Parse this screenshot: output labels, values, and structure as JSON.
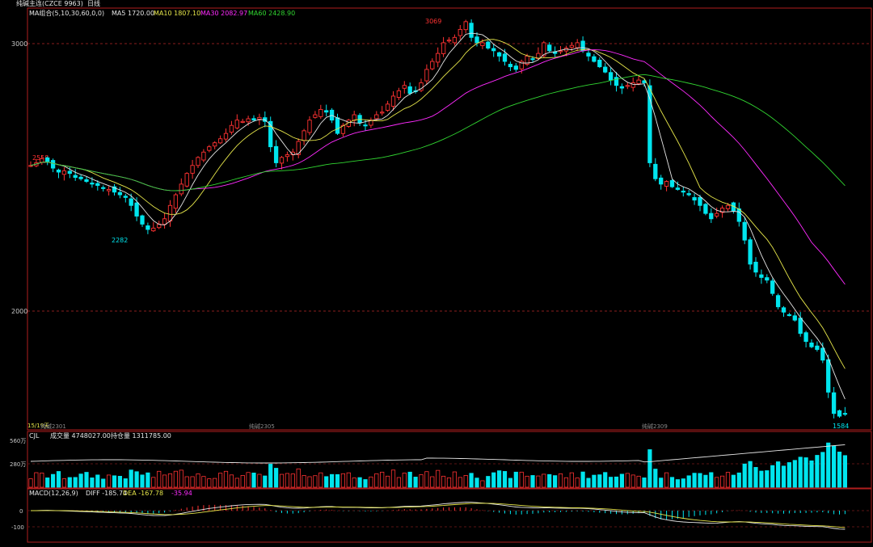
{
  "header": {
    "symbol": "纯碱主连(CZCE 9963)",
    "period": "日线",
    "ma_group": "MA组合(5,10,30,60,0,0)",
    "ma5": "MA5 1720.00",
    "ma10": "MA10 1807.10",
    "ma30": "MA30 2082.97",
    "ma60": "MA60 2428.90"
  },
  "axis": {
    "price_3000": "3000",
    "price_2000": "2000",
    "date_left": "纯碱2301",
    "date_mid": "纯碱2305",
    "date_right": "纯碱2309",
    "left_tag": "15/19天"
  },
  "annotations": {
    "high": "3069",
    "low1": "2282",
    "left_high": "2558",
    "last_low": "1584"
  },
  "volume": {
    "label": "CJL",
    "volume_text": "成交量 4748027.00",
    "oi_text": "持仓量 1311785.00",
    "tick_560": "560万",
    "tick_280": "280万"
  },
  "macd": {
    "label": "MACD(12,26,9)",
    "diff_text": "DIFF -185.74",
    "dea_text": "DEA -167.78",
    "macd_text": "-35.94",
    "tick_0": "0",
    "tick_m100": "-100"
  },
  "colors": {
    "up": "#ff3232",
    "down": "#00e5ee",
    "ma5": "#e6e6e6",
    "ma10": "#e6e64a",
    "ma30": "#ff2bff",
    "ma60": "#31d631",
    "grid": "#8a1e1e",
    "frame": "#b01e1e"
  },
  "chart_data": {
    "type": "candlestick",
    "price_range": [
      1575,
      3120
    ],
    "closes": [
      2530,
      2540,
      2555,
      2545,
      2520,
      2505,
      2510,
      2500,
      2485,
      2480,
      2470,
      2460,
      2455,
      2445,
      2440,
      2430,
      2420,
      2410,
      2380,
      2340,
      2310,
      2290,
      2295,
      2310,
      2330,
      2380,
      2420,
      2460,
      2500,
      2530,
      2560,
      2580,
      2600,
      2615,
      2630,
      2650,
      2680,
      2700,
      2695,
      2705,
      2700,
      2710,
      2695,
      2600,
      2540,
      2560,
      2570,
      2580,
      2620,
      2660,
      2700,
      2720,
      2740,
      2730,
      2700,
      2650,
      2680,
      2700,
      2720,
      2690,
      2680,
      2700,
      2720,
      2730,
      2760,
      2790,
      2810,
      2830,
      2800,
      2810,
      2840,
      2890,
      2920,
      2950,
      2990,
      3000,
      3010,
      3040,
      3069,
      3010,
      2990,
      2990,
      2970,
      2960,
      2940,
      2920,
      2900,
      2890,
      2920,
      2940,
      2930,
      2950,
      2990,
      2960,
      2950,
      2960,
      2970,
      2980,
      2990,
      2960,
      2940,
      2920,
      2900,
      2880,
      2850,
      2830,
      2820,
      2830,
      2840,
      2850,
      2840,
      2540,
      2480,
      2460,
      2470,
      2450,
      2440,
      2430,
      2420,
      2400,
      2380,
      2350,
      2330,
      2350,
      2370,
      2380,
      2360,
      2320,
      2250,
      2160,
      2130,
      2110,
      2100,
      2050,
      2000,
      1980,
      1970,
      1950,
      1900,
      1870,
      1850,
      1840,
      1800,
      1680,
      1600,
      1590,
      1600
    ]
  }
}
